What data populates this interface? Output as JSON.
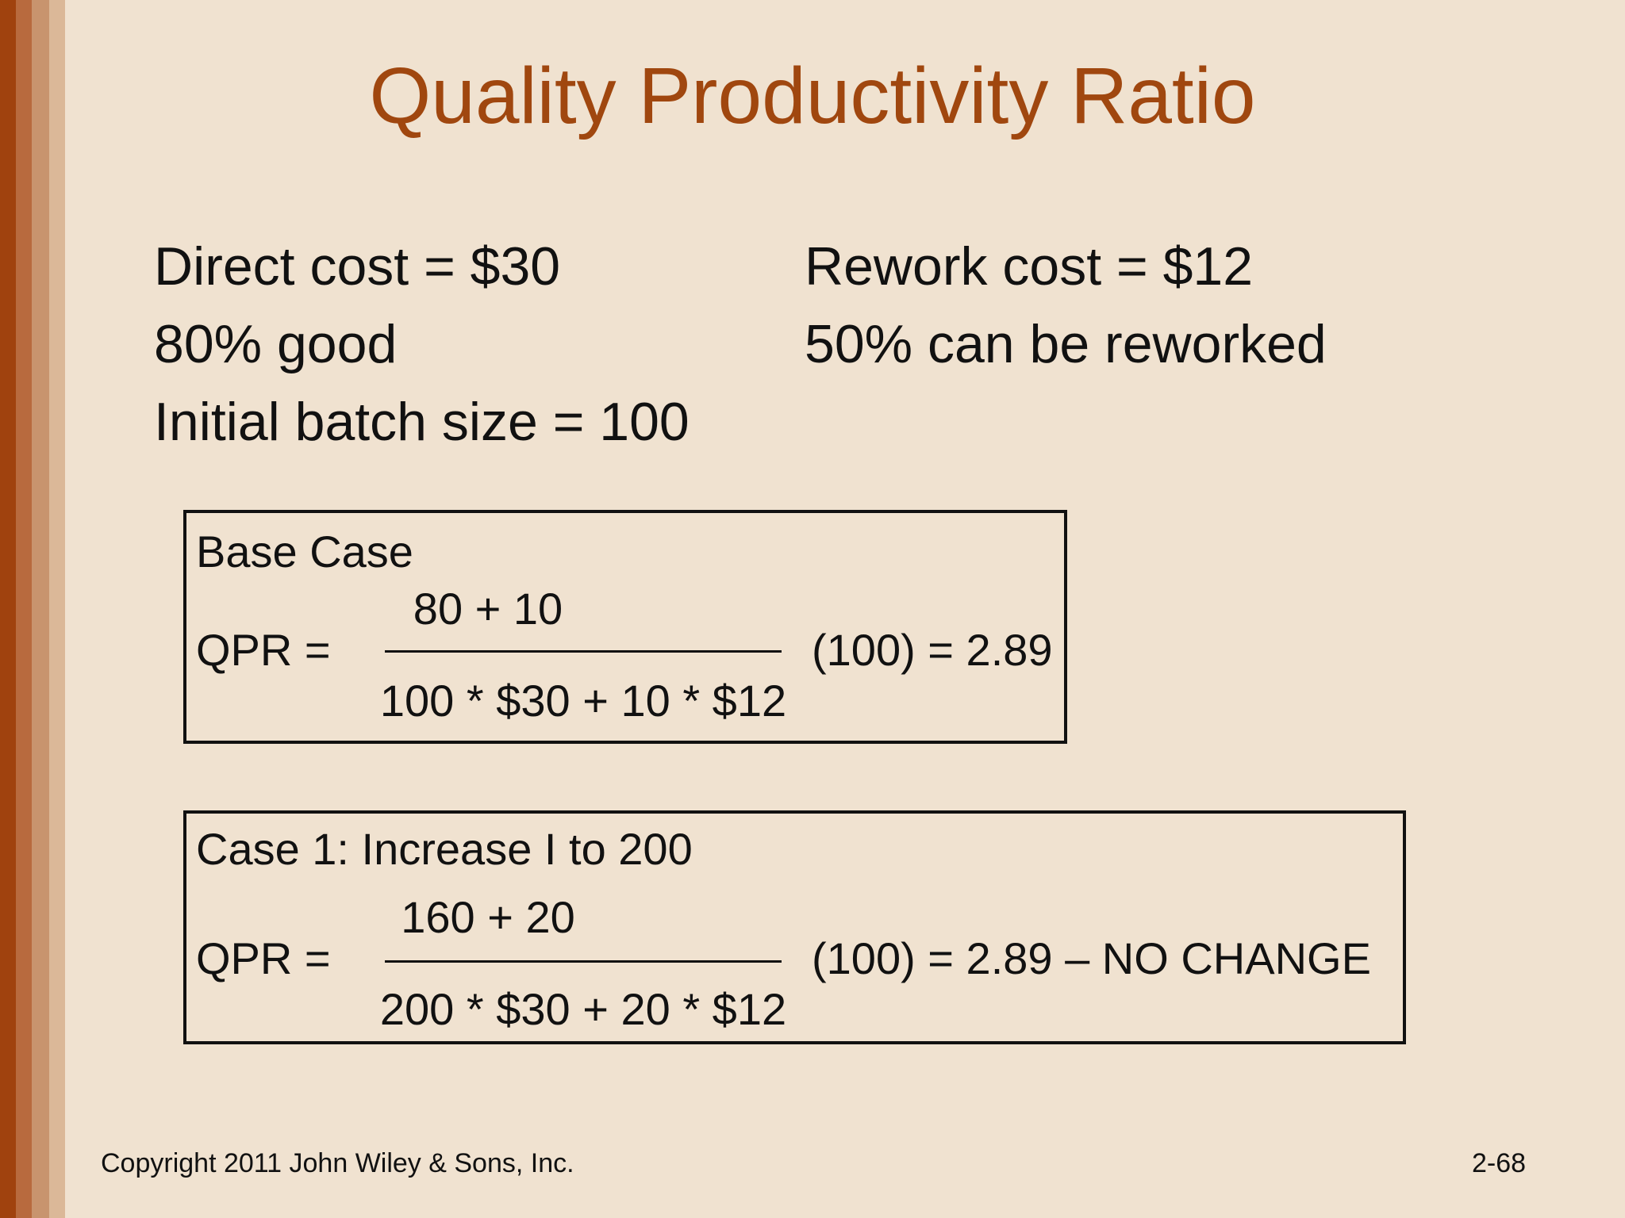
{
  "title": "Quality Productivity Ratio",
  "givens": {
    "direct_cost": "Direct cost = $30",
    "good_pct": "80% good",
    "batch_size": "Initial batch size = 100",
    "rework_cost": "Rework cost = $12",
    "rework_pct": "50% can be reworked"
  },
  "base_case": {
    "label": "Base Case",
    "qpr": "QPR =",
    "numerator": "80 + 10",
    "denominator": "100 * $30 + 10 * $12",
    "result": "(100) = 2.89"
  },
  "case1": {
    "label": "Case 1: Increase I to 200",
    "qpr": "QPR =",
    "numerator": "160 + 20",
    "denominator": "200 * $30 + 20 * $12",
    "result": "(100) = 2.89 – NO CHANGE"
  },
  "footer": {
    "copyright": "Copyright 2011 John Wiley & Sons, Inc.",
    "page": "2-68"
  },
  "colors": {
    "background": "#f0e2d0",
    "title": "#a0470f",
    "accent_stripe": "#a0420e"
  }
}
